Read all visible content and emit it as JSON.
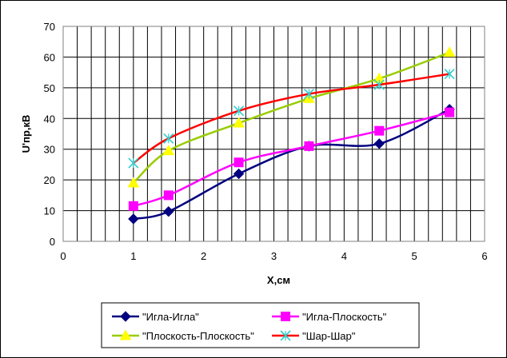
{
  "chart_data": {
    "type": "line",
    "xlabel": "X,см",
    "ylabel": "U'пр,кВ",
    "xlim": [
      0,
      6
    ],
    "ylim": [
      0,
      70
    ],
    "x_ticks": [
      0,
      1,
      2,
      3,
      4,
      5,
      6
    ],
    "y_ticks": [
      0,
      10,
      20,
      30,
      40,
      50,
      60,
      70
    ],
    "grid": true,
    "legend_position": "bottom",
    "series": [
      {
        "name": "\"Игла-Игла\"",
        "color": "#000080",
        "marker": "diamond-icon",
        "x": [
          1,
          1.5,
          2.5,
          3.5,
          4.5,
          5.5
        ],
        "y": [
          7.3,
          9.7,
          22,
          31,
          31.8,
          43
        ]
      },
      {
        "name": "\"Игла-Плоскость\"",
        "color": "#ff00ff",
        "marker": "square-icon",
        "x": [
          1,
          1.5,
          2.5,
          3.5,
          4.5,
          5.5
        ],
        "y": [
          11.5,
          15,
          25.7,
          31,
          36,
          42
        ]
      },
      {
        "name": "\"Плоскость-Плоскость\"",
        "color": "#99cc00",
        "marker_color": "#ffff00",
        "marker": "triangle-icon",
        "x": [
          1,
          1.5,
          2.5,
          3.5,
          4.5,
          5.5
        ],
        "y": [
          19,
          29.5,
          38.5,
          46.5,
          53,
          61.5
        ]
      },
      {
        "name": "\"Шар-Шар\"",
        "color": "#ff0000",
        "marker_color": "#33cccc",
        "marker": "star-icon",
        "x": [
          1,
          1.5,
          2.5,
          3.5,
          4.5,
          5.5
        ],
        "y": [
          25.5,
          33.5,
          42.5,
          48,
          51,
          54.5
        ]
      }
    ]
  }
}
